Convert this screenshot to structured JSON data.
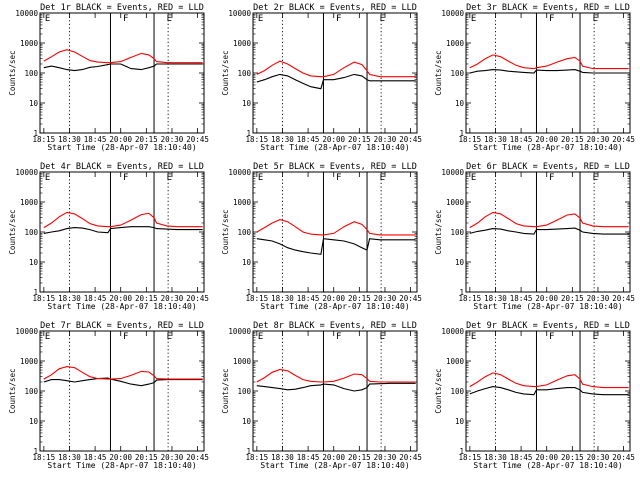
{
  "colors": {
    "events": "#000000",
    "lld": "#ff0000",
    "background": "#ffffff"
  },
  "shared": {
    "ylabel": "Counts/sec",
    "xlabel": "Start Time (28-Apr-07 18:10:40)",
    "x_ticks": [
      "18:15",
      "18:30",
      "18:45",
      "20:00",
      "20:15",
      "20:30",
      "20:45"
    ],
    "y_ticks": [
      "1",
      "10",
      "100",
      "1000",
      "10000"
    ],
    "x_tick_positions": [
      0,
      1,
      2,
      3,
      4,
      5,
      6
    ],
    "x_domain": [
      -0.15,
      6.25
    ],
    "y_log_range": [
      1,
      10000
    ],
    "dotted_lines": [
      1,
      4.85
    ],
    "solid_lines": [
      2.6,
      4.3
    ],
    "letters": [
      {
        "x": 0.0,
        "text": "E"
      },
      {
        "x": 3.05,
        "text": "F"
      },
      {
        "x": 4.75,
        "text": "E"
      }
    ],
    "x_samples": [
      0.0,
      0.3,
      0.6,
      0.9,
      1.2,
      1.5,
      1.8,
      2.1,
      2.5,
      2.6,
      3.0,
      3.4,
      3.8,
      4.1,
      4.3,
      4.4,
      4.8,
      5.2,
      5.6,
      6.0,
      6.2
    ]
  },
  "chart_data": [
    {
      "type": "line",
      "title": "Det 1r BLACK = Events, RED = LLD",
      "ylim": [
        1,
        10000
      ],
      "series": [
        {
          "name": "Events",
          "x": [
            0.0,
            0.3,
            0.6,
            0.9,
            1.2,
            1.5,
            1.8,
            2.1,
            2.5,
            2.6,
            3.0,
            3.4,
            3.8,
            4.1,
            4.3,
            4.4,
            4.8,
            5.2,
            5.6,
            6.0,
            6.2
          ],
          "values": [
            150,
            170,
            150,
            130,
            120,
            130,
            155,
            165,
            190,
            200,
            200,
            140,
            130,
            150,
            170,
            200,
            200,
            200,
            200,
            200,
            200
          ]
        },
        {
          "name": "LLD",
          "x": [
            0.0,
            0.3,
            0.6,
            0.9,
            1.2,
            1.5,
            1.8,
            2.1,
            2.5,
            2.6,
            3.0,
            3.4,
            3.8,
            4.1,
            4.3,
            4.4,
            4.8,
            5.2,
            5.6,
            6.0,
            6.2
          ],
          "values": [
            250,
            350,
            500,
            600,
            500,
            360,
            260,
            230,
            220,
            220,
            240,
            330,
            450,
            400,
            300,
            240,
            220,
            220,
            220,
            220,
            220
          ]
        }
      ]
    },
    {
      "type": "line",
      "title": "Det 2r BLACK = Events, RED = LLD",
      "ylim": [
        1,
        10000
      ],
      "series": [
        {
          "name": "Events",
          "x": [
            0.0,
            0.3,
            0.6,
            0.9,
            1.2,
            1.5,
            1.8,
            2.1,
            2.5,
            2.6,
            3.0,
            3.4,
            3.8,
            4.1,
            4.3,
            4.4,
            4.8,
            5.2,
            5.6,
            6.0,
            6.2
          ],
          "values": [
            50,
            60,
            75,
            90,
            80,
            60,
            45,
            35,
            30,
            60,
            60,
            70,
            90,
            80,
            60,
            55,
            55,
            55,
            55,
            55,
            55
          ]
        },
        {
          "name": "LLD",
          "x": [
            0.0,
            0.3,
            0.6,
            0.9,
            1.2,
            1.5,
            1.8,
            2.1,
            2.5,
            2.6,
            3.0,
            3.4,
            3.8,
            4.1,
            4.3,
            4.4,
            4.8,
            5.2,
            5.6,
            6.0,
            6.2
          ],
          "values": [
            90,
            120,
            180,
            250,
            200,
            140,
            100,
            80,
            75,
            75,
            90,
            150,
            230,
            190,
            120,
            90,
            75,
            75,
            75,
            75,
            75
          ]
        }
      ]
    },
    {
      "type": "line",
      "title": "Det 3r BLACK = Events, RED = LLD",
      "ylim": [
        1,
        10000
      ],
      "series": [
        {
          "name": "Events",
          "x": [
            0.0,
            0.3,
            0.6,
            0.9,
            1.2,
            1.5,
            1.8,
            2.1,
            2.5,
            2.6,
            3.0,
            3.4,
            3.8,
            4.1,
            4.3,
            4.4,
            4.8,
            5.2,
            5.6,
            6.0,
            6.2
          ],
          "values": [
            100,
            115,
            120,
            130,
            125,
            115,
            110,
            105,
            100,
            125,
            120,
            120,
            125,
            130,
            115,
            105,
            100,
            100,
            100,
            100,
            100
          ]
        },
        {
          "name": "LLD",
          "x": [
            0.0,
            0.3,
            0.6,
            0.9,
            1.2,
            1.5,
            1.8,
            2.1,
            2.5,
            2.6,
            3.0,
            3.4,
            3.8,
            4.1,
            4.3,
            4.4,
            4.8,
            5.2,
            5.6,
            6.0,
            6.2
          ],
          "values": [
            150,
            200,
            300,
            400,
            350,
            250,
            180,
            150,
            140,
            150,
            170,
            230,
            300,
            330,
            250,
            170,
            140,
            140,
            140,
            140,
            140
          ]
        }
      ]
    },
    {
      "type": "line",
      "title": "Det 4r BLACK = Events, RED = LLD",
      "ylim": [
        1,
        10000
      ],
      "series": [
        {
          "name": "Events",
          "x": [
            0.0,
            0.3,
            0.6,
            0.9,
            1.2,
            1.5,
            1.8,
            2.1,
            2.5,
            2.6,
            3.0,
            3.4,
            3.8,
            4.1,
            4.3,
            4.4,
            4.8,
            5.2,
            5.6,
            6.0,
            6.2
          ],
          "values": [
            90,
            100,
            110,
            130,
            140,
            135,
            120,
            100,
            95,
            130,
            140,
            150,
            150,
            150,
            140,
            130,
            125,
            120,
            120,
            120,
            120
          ]
        },
        {
          "name": "LLD",
          "x": [
            0.0,
            0.3,
            0.6,
            0.9,
            1.2,
            1.5,
            1.8,
            2.1,
            2.5,
            2.6,
            3.0,
            3.4,
            3.8,
            4.1,
            4.3,
            4.4,
            4.8,
            5.2,
            5.6,
            6.0,
            6.2
          ],
          "values": [
            140,
            200,
            320,
            450,
            400,
            280,
            190,
            160,
            150,
            150,
            170,
            250,
            380,
            420,
            300,
            200,
            160,
            150,
            150,
            150,
            150
          ]
        }
      ]
    },
    {
      "type": "line",
      "title": "Det 5r BLACK = Events, RED = LLD",
      "ylim": [
        1,
        10000
      ],
      "series": [
        {
          "name": "Events",
          "x": [
            0.0,
            0.3,
            0.6,
            0.9,
            1.2,
            1.5,
            1.8,
            2.1,
            2.5,
            2.6,
            3.0,
            3.4,
            3.8,
            4.1,
            4.3,
            4.4,
            4.8,
            5.2,
            5.6,
            6.0,
            6.2
          ],
          "values": [
            60,
            55,
            50,
            40,
            30,
            25,
            22,
            20,
            18,
            60,
            55,
            50,
            40,
            30,
            25,
            60,
            55,
            55,
            55,
            55,
            55
          ]
        },
        {
          "name": "LLD",
          "x": [
            0.0,
            0.3,
            0.6,
            0.9,
            1.2,
            1.5,
            1.8,
            2.1,
            2.5,
            2.6,
            3.0,
            3.4,
            3.8,
            4.1,
            4.3,
            4.4,
            4.8,
            5.2,
            5.6,
            6.0,
            6.2
          ],
          "values": [
            100,
            140,
            200,
            260,
            220,
            150,
            100,
            85,
            80,
            80,
            90,
            150,
            220,
            180,
            120,
            90,
            80,
            80,
            80,
            80,
            80
          ]
        }
      ]
    },
    {
      "type": "line",
      "title": "Det 6r BLACK = Events, RED = LLD",
      "ylim": [
        1,
        10000
      ],
      "series": [
        {
          "name": "Events",
          "x": [
            0.0,
            0.3,
            0.6,
            0.9,
            1.2,
            1.5,
            1.8,
            2.1,
            2.5,
            2.6,
            3.0,
            3.4,
            3.8,
            4.1,
            4.3,
            4.4,
            4.8,
            5.2,
            5.6,
            6.0,
            6.2
          ],
          "values": [
            90,
            105,
            115,
            130,
            125,
            110,
            100,
            90,
            85,
            120,
            120,
            125,
            130,
            135,
            115,
            100,
            90,
            85,
            85,
            85,
            85
          ]
        },
        {
          "name": "LLD",
          "x": [
            0.0,
            0.3,
            0.6,
            0.9,
            1.2,
            1.5,
            1.8,
            2.1,
            2.5,
            2.6,
            3.0,
            3.4,
            3.8,
            4.1,
            4.3,
            4.4,
            4.8,
            5.2,
            5.6,
            6.0,
            6.2
          ],
          "values": [
            140,
            200,
            320,
            450,
            400,
            280,
            190,
            160,
            150,
            150,
            170,
            250,
            370,
            400,
            290,
            200,
            160,
            150,
            150,
            150,
            150
          ]
        }
      ]
    },
    {
      "type": "line",
      "title": "Det 7r BLACK = Events, RED = LLD",
      "ylim": [
        1,
        10000
      ],
      "series": [
        {
          "name": "Events",
          "x": [
            0.0,
            0.3,
            0.6,
            0.9,
            1.2,
            1.5,
            1.8,
            2.1,
            2.5,
            2.6,
            3.0,
            3.4,
            3.8,
            4.1,
            4.3,
            4.4,
            4.8,
            5.2,
            5.6,
            6.0,
            6.2
          ],
          "values": [
            200,
            240,
            240,
            220,
            200,
            220,
            240,
            260,
            270,
            250,
            210,
            170,
            150,
            170,
            190,
            230,
            240,
            240,
            240,
            240,
            240
          ]
        },
        {
          "name": "LLD",
          "x": [
            0.0,
            0.3,
            0.6,
            0.9,
            1.2,
            1.5,
            1.8,
            2.1,
            2.5,
            2.6,
            3.0,
            3.4,
            3.8,
            4.1,
            4.3,
            4.4,
            4.8,
            5.2,
            5.6,
            6.0,
            6.2
          ],
          "values": [
            250,
            350,
            550,
            650,
            600,
            420,
            300,
            260,
            250,
            250,
            260,
            330,
            450,
            430,
            320,
            260,
            250,
            250,
            250,
            250,
            250
          ]
        }
      ]
    },
    {
      "type": "line",
      "title": "Det 8r BLACK = Events, RED = LLD",
      "ylim": [
        1,
        10000
      ],
      "series": [
        {
          "name": "Events",
          "x": [
            0.0,
            0.3,
            0.6,
            0.9,
            1.2,
            1.5,
            1.8,
            2.1,
            2.5,
            2.6,
            3.0,
            3.4,
            3.8,
            4.1,
            4.3,
            4.4,
            4.8,
            5.2,
            5.6,
            6.0,
            6.2
          ],
          "values": [
            150,
            140,
            130,
            120,
            110,
            115,
            130,
            150,
            160,
            170,
            160,
            120,
            100,
            110,
            130,
            170,
            175,
            180,
            180,
            180,
            180
          ]
        },
        {
          "name": "LLD",
          "x": [
            0.0,
            0.3,
            0.6,
            0.9,
            1.2,
            1.5,
            1.8,
            2.1,
            2.5,
            2.6,
            3.0,
            3.4,
            3.8,
            4.1,
            4.3,
            4.4,
            4.8,
            5.2,
            5.6,
            6.0,
            6.2
          ],
          "values": [
            200,
            280,
            420,
            520,
            470,
            330,
            240,
            210,
            200,
            200,
            210,
            270,
            370,
            350,
            260,
            210,
            200,
            200,
            200,
            200,
            200
          ]
        }
      ]
    },
    {
      "type": "line",
      "title": "Det 9r BLACK = Events, RED = LLD",
      "ylim": [
        1,
        10000
      ],
      "series": [
        {
          "name": "Events",
          "x": [
            0.0,
            0.3,
            0.6,
            0.9,
            1.2,
            1.5,
            1.8,
            2.1,
            2.5,
            2.6,
            3.0,
            3.4,
            3.8,
            4.1,
            4.3,
            4.4,
            4.8,
            5.2,
            5.6,
            6.0,
            6.2
          ],
          "values": [
            80,
            100,
            120,
            140,
            130,
            110,
            90,
            80,
            75,
            110,
            110,
            120,
            130,
            130,
            110,
            90,
            80,
            75,
            75,
            75,
            75
          ]
        },
        {
          "name": "LLD",
          "x": [
            0.0,
            0.3,
            0.6,
            0.9,
            1.2,
            1.5,
            1.8,
            2.1,
            2.5,
            2.6,
            3.0,
            3.4,
            3.8,
            4.1,
            4.3,
            4.4,
            4.8,
            5.2,
            5.6,
            6.0,
            6.2
          ],
          "values": [
            140,
            200,
            300,
            400,
            350,
            250,
            180,
            150,
            140,
            140,
            160,
            230,
            320,
            350,
            250,
            170,
            140,
            130,
            130,
            130,
            130
          ]
        }
      ]
    }
  ]
}
